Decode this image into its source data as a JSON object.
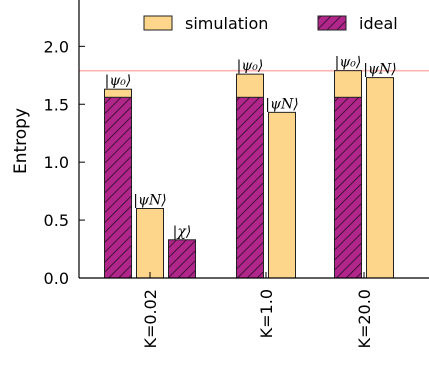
{
  "chart_data": {
    "type": "bar",
    "ylabel": "Entropy",
    "xlabel": "",
    "ylim": [
      0,
      2.4
    ],
    "yticks": [
      "0.0",
      "0.5",
      "1.0",
      "1.5",
      "2.0"
    ],
    "categories": [
      "K=0.02",
      "K=1.0",
      "K=20.0"
    ],
    "reference_line": {
      "y": 1.79,
      "color": "#ffb3b3"
    },
    "legend": {
      "placement": "top",
      "entries": [
        {
          "name": "simulation",
          "color": "#fdd68c",
          "hatch": false
        },
        {
          "name": "ideal",
          "color": "#b0268b",
          "hatch": true
        }
      ]
    },
    "groups": [
      {
        "category": "K=0.02",
        "bars": [
          {
            "label": "|ψ₀⟩",
            "simulation": 1.63,
            "ideal": 1.56
          },
          {
            "label": "|ψN⟩",
            "simulation": 0.6,
            "ideal": null
          },
          {
            "label": "|χ⟩",
            "simulation": null,
            "ideal": 0.33
          }
        ]
      },
      {
        "category": "K=1.0",
        "bars": [
          {
            "label": "|ψ₀⟩",
            "simulation": 1.76,
            "ideal": 1.56
          },
          {
            "label": "|ψN⟩",
            "simulation": 1.43,
            "ideal": null
          }
        ]
      },
      {
        "category": "K=20.0",
        "bars": [
          {
            "label": "|ψ₀⟩",
            "simulation": 1.79,
            "ideal": 1.56
          },
          {
            "label": "|ψN⟩",
            "simulation": 1.73,
            "ideal": null
          }
        ]
      }
    ],
    "colors": {
      "simulation": "#fdd68c",
      "ideal": "#b0268b",
      "edge": "#222222"
    }
  }
}
